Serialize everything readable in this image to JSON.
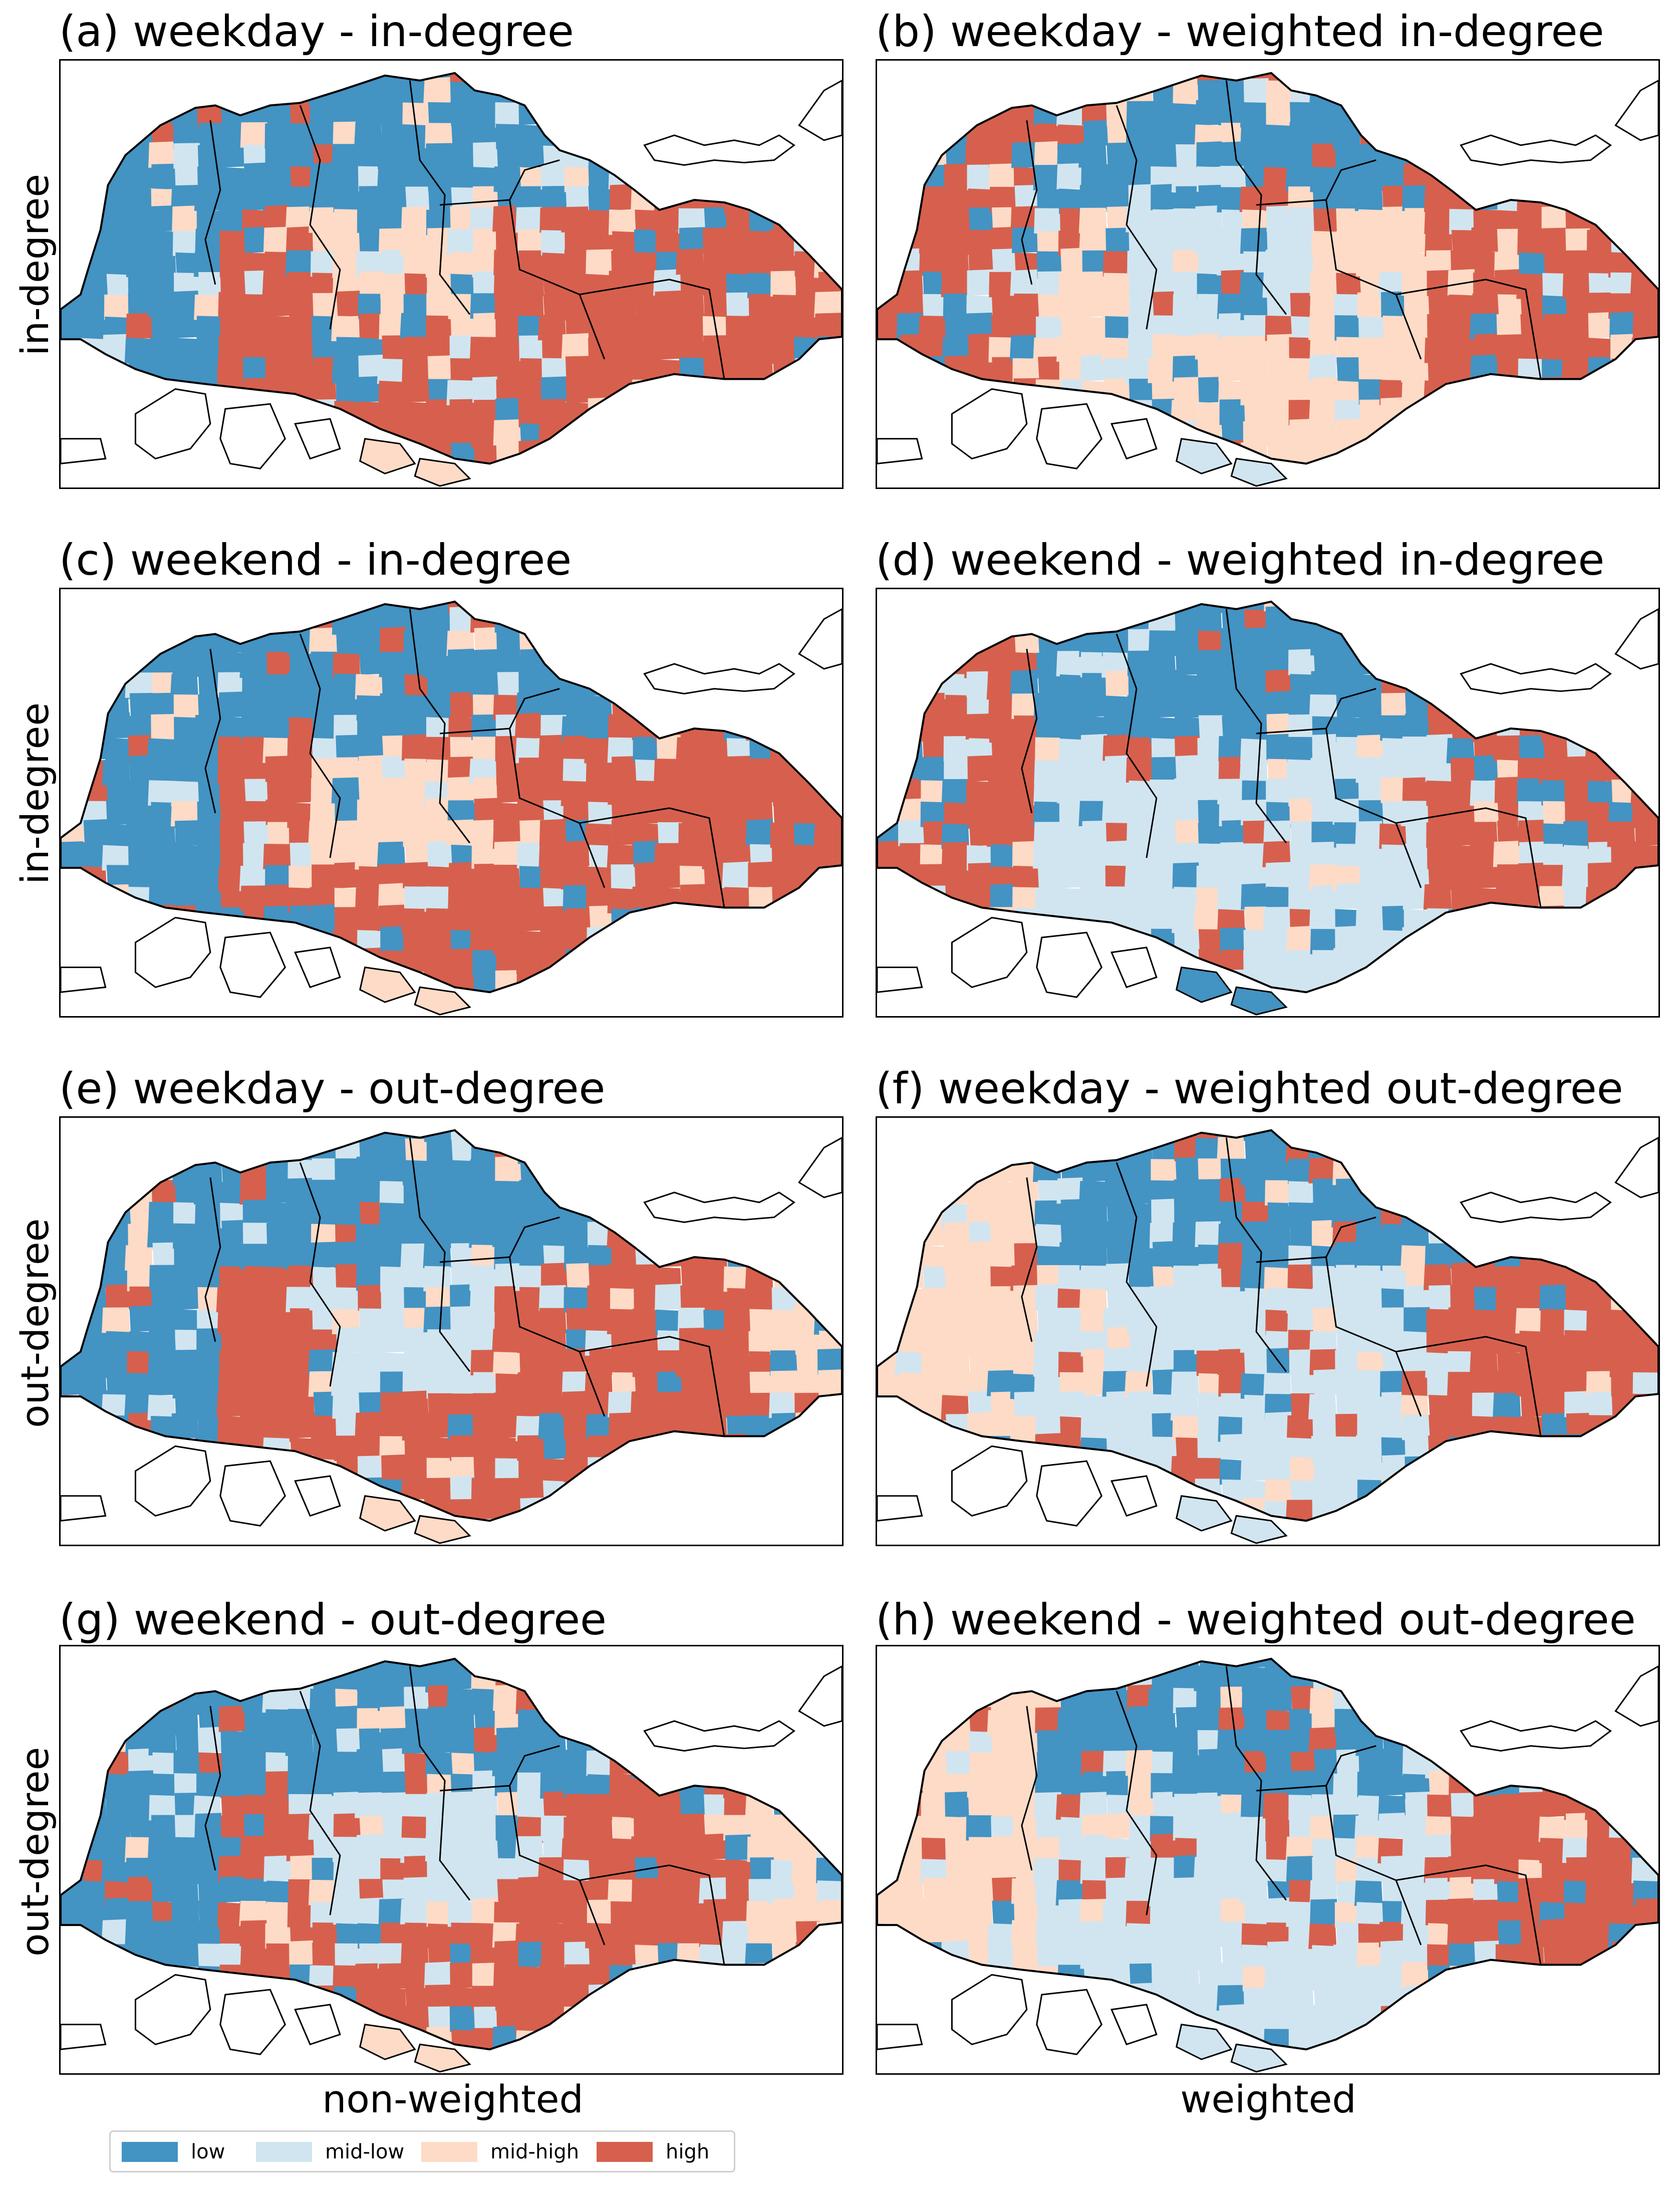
{
  "colors": {
    "low": "#4393c3",
    "mid-low": "#d1e5f0",
    "mid-high": "#fddbc7",
    "high": "#d6604d",
    "boundary": "#000000"
  },
  "columns": [
    {
      "label": "non-weighted"
    },
    {
      "label": "weighted"
    }
  ],
  "rows": [
    {
      "label": "in-degree"
    },
    {
      "label": "in-degree"
    },
    {
      "label": "out-degree"
    },
    {
      "label": "out-degree"
    }
  ],
  "panels": [
    {
      "title": "(a) weekday - in-degree",
      "mix": [
        0.3,
        0.25,
        0.2,
        0.25
      ],
      "zones": {
        "west": "low",
        "north": "low",
        "centre": "mid-high",
        "east": "high",
        "south": "high",
        "central_east": "high",
        "islands": "mid-high"
      }
    },
    {
      "title": "(b) weekday - weighted in-degree",
      "mix": [
        0.25,
        0.25,
        0.25,
        0.25
      ],
      "zones": {
        "west": "high",
        "north": "low",
        "centre": "mid-low",
        "east": "high",
        "south": "mid-high",
        "central_east": "high",
        "islands": "mid-low"
      }
    },
    {
      "title": "(c) weekend - in-degree",
      "mix": [
        0.3,
        0.25,
        0.2,
        0.25
      ],
      "zones": {
        "west": "low",
        "north": "low",
        "centre": "mid-high",
        "east": "high",
        "south": "high",
        "central_east": "high",
        "islands": "mid-high"
      }
    },
    {
      "title": "(d) weekend - weighted in-degree",
      "mix": [
        0.25,
        0.3,
        0.2,
        0.25
      ],
      "zones": {
        "west": "high",
        "north": "low",
        "centre": "mid-low",
        "east": "high",
        "south": "mid-low",
        "central_east": "high",
        "islands": "low"
      }
    },
    {
      "title": "(e) weekday - out-degree",
      "mix": [
        0.3,
        0.3,
        0.2,
        0.2
      ],
      "zones": {
        "west": "low",
        "north": "low",
        "centre": "mid-low",
        "east": "mid-high",
        "south": "high",
        "central_east": "high",
        "islands": "mid-high"
      }
    },
    {
      "title": "(f) weekday - weighted out-degree",
      "mix": [
        0.25,
        0.3,
        0.2,
        0.25
      ],
      "zones": {
        "west": "mid-high",
        "north": "low",
        "centre": "mid-low",
        "east": "high",
        "south": "mid-low",
        "central_east": "high",
        "islands": "mid-low"
      }
    },
    {
      "title": "(g) weekend - out-degree",
      "mix": [
        0.3,
        0.3,
        0.2,
        0.2
      ],
      "zones": {
        "west": "low",
        "north": "low",
        "centre": "mid-low",
        "east": "mid-high",
        "south": "high",
        "central_east": "high",
        "islands": "mid-high"
      }
    },
    {
      "title": "(h) weekend - weighted out-degree",
      "mix": [
        0.25,
        0.3,
        0.2,
        0.25
      ],
      "zones": {
        "west": "mid-high",
        "north": "low",
        "centre": "mid-low",
        "east": "high",
        "south": "mid-low",
        "central_east": "high",
        "islands": "mid-low"
      }
    }
  ],
  "legend": {
    "items": [
      {
        "key": "low",
        "label": "low"
      },
      {
        "key": "mid-low",
        "label": "mid-low"
      },
      {
        "key": "mid-high",
        "label": "mid-high"
      },
      {
        "key": "high",
        "label": "high"
      }
    ]
  }
}
